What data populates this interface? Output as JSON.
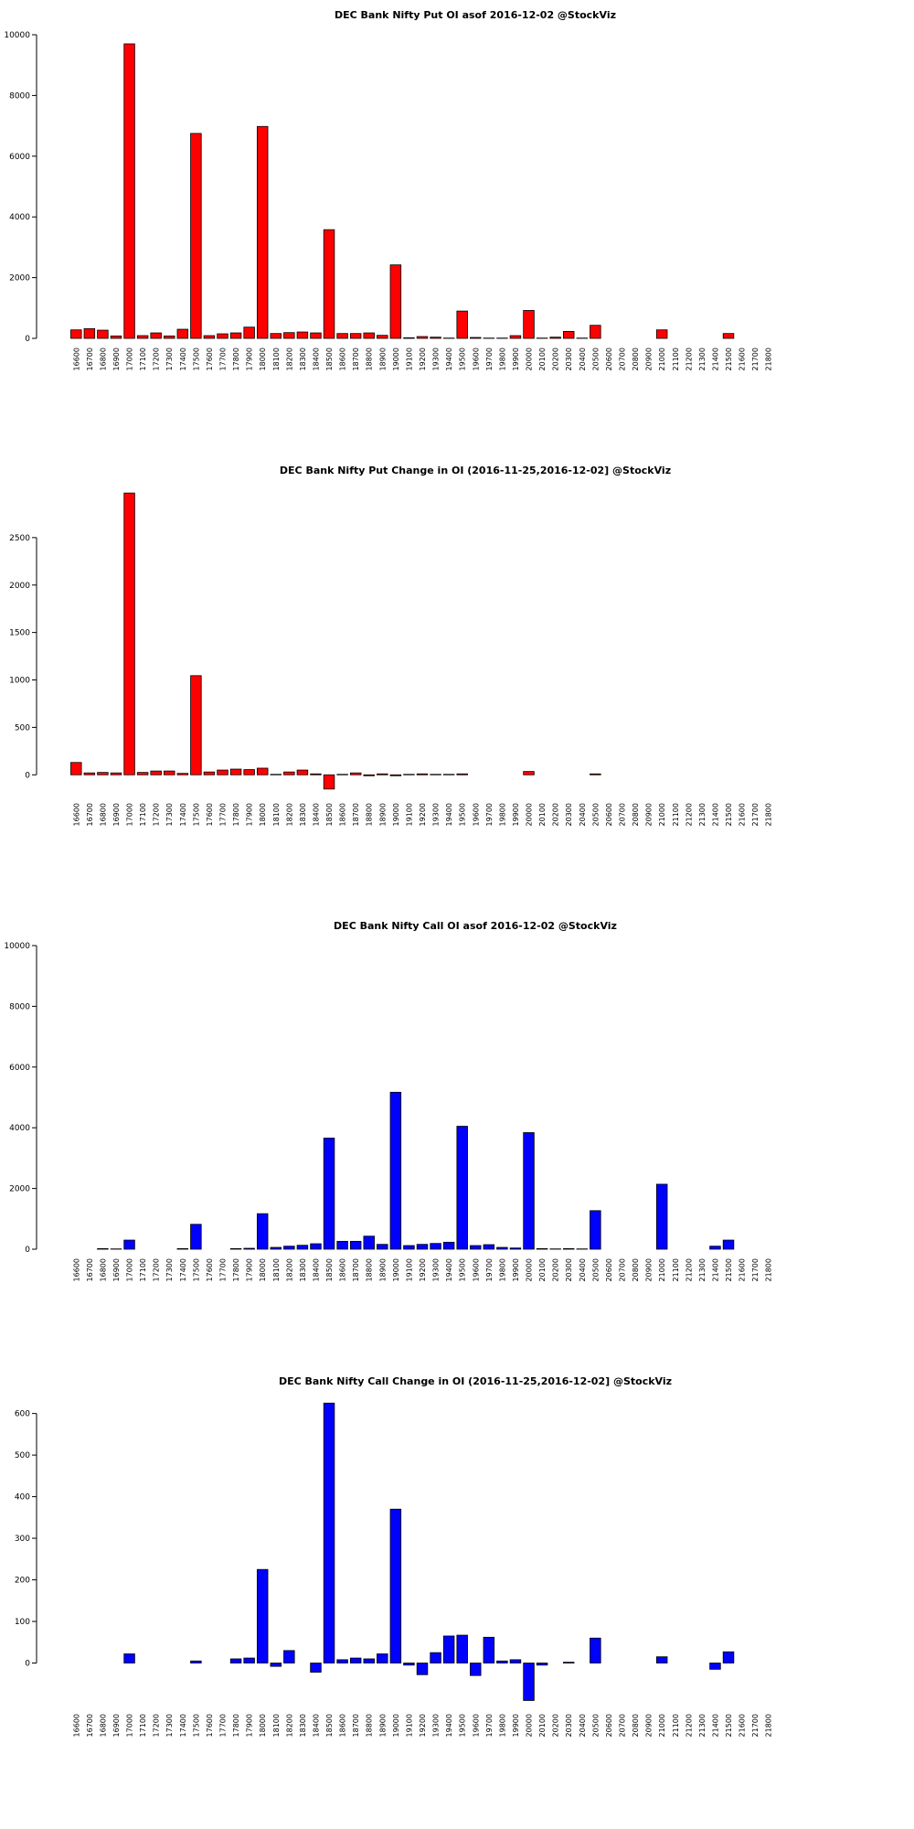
{
  "chart_data": [
    {
      "type": "bar",
      "title": "DEC Bank Nifty Put OI asof 2016-12-02 @StockViz",
      "color": "#ff0000",
      "categories": [
        "16600",
        "16700",
        "16800",
        "16900",
        "17000",
        "17100",
        "17200",
        "17300",
        "17400",
        "17500",
        "17600",
        "17700",
        "17800",
        "17900",
        "18000",
        "18100",
        "18200",
        "18300",
        "18400",
        "18500",
        "18600",
        "18700",
        "18800",
        "18900",
        "19000",
        "19100",
        "19200",
        "19300",
        "19400",
        "19500",
        "19600",
        "19700",
        "19800",
        "19900",
        "20000",
        "20100",
        "20200",
        "20300",
        "20400",
        "20500",
        "20600",
        "20700",
        "20800",
        "20900",
        "21000",
        "21100",
        "21200",
        "21300",
        "21400",
        "21500",
        "21600",
        "21700",
        "21800"
      ],
      "values": [
        280,
        320,
        270,
        80,
        9700,
        90,
        180,
        80,
        300,
        6750,
        90,
        150,
        180,
        370,
        6980,
        160,
        190,
        210,
        180,
        3580,
        160,
        160,
        180,
        100,
        2420,
        20,
        60,
        40,
        10,
        900,
        30,
        10,
        10,
        90,
        920,
        10,
        40,
        230,
        10,
        430,
        0,
        0,
        0,
        0,
        280,
        0,
        0,
        0,
        0,
        160,
        0,
        0,
        0
      ],
      "ylim": [
        0,
        10000
      ],
      "yticks": [
        0,
        2000,
        4000,
        6000,
        8000,
        10000
      ]
    },
    {
      "type": "bar",
      "title": "DEC Bank Nifty Put Change in OI (2016-11-25,2016-12-02] @StockViz",
      "color": "#ff0000",
      "categories": [
        "16600",
        "16700",
        "16800",
        "16900",
        "17000",
        "17100",
        "17200",
        "17300",
        "17400",
        "17500",
        "17600",
        "17700",
        "17800",
        "17900",
        "18000",
        "18100",
        "18200",
        "18300",
        "18400",
        "18500",
        "18600",
        "18700",
        "18800",
        "18900",
        "19000",
        "19100",
        "19200",
        "19300",
        "19400",
        "19500",
        "19600",
        "19700",
        "19800",
        "19900",
        "20000",
        "20100",
        "20200",
        "20300",
        "20400",
        "20500",
        "20600",
        "20700",
        "20800",
        "20900",
        "21000",
        "21100",
        "21200",
        "21300",
        "21400",
        "21500",
        "21600",
        "21700",
        "21800"
      ],
      "values": [
        130,
        20,
        25,
        20,
        2970,
        25,
        40,
        40,
        15,
        1045,
        30,
        50,
        60,
        55,
        70,
        5,
        30,
        50,
        10,
        -150,
        5,
        20,
        -10,
        10,
        -10,
        5,
        10,
        5,
        5,
        10,
        0,
        0,
        0,
        0,
        35,
        0,
        0,
        0,
        0,
        10,
        0,
        0,
        0,
        0,
        0,
        0,
        0,
        0,
        0,
        0,
        0,
        0,
        0
      ],
      "ylim": [
        -200,
        3000
      ],
      "yticks": [
        0,
        500,
        1000,
        1500,
        2000,
        2500
      ]
    },
    {
      "type": "bar",
      "title": "DEC Bank Nifty Call OI asof 2016-12-02 @StockViz",
      "color": "#0000ff",
      "categories": [
        "16600",
        "16700",
        "16800",
        "16900",
        "17000",
        "17100",
        "17200",
        "17300",
        "17400",
        "17500",
        "17600",
        "17700",
        "17800",
        "17900",
        "18000",
        "18100",
        "18200",
        "18300",
        "18400",
        "18500",
        "18600",
        "18700",
        "18800",
        "18900",
        "19000",
        "19100",
        "19200",
        "19300",
        "19400",
        "19500",
        "19600",
        "19700",
        "19800",
        "19900",
        "20000",
        "20100",
        "20200",
        "20300",
        "20400",
        "20500",
        "20600",
        "20700",
        "20800",
        "20900",
        "21000",
        "21100",
        "21200",
        "21300",
        "21400",
        "21500",
        "21600",
        "21700",
        "21800"
      ],
      "values": [
        0,
        0,
        20,
        10,
        300,
        0,
        0,
        0,
        20,
        820,
        0,
        0,
        20,
        30,
        1170,
        60,
        100,
        130,
        180,
        3660,
        260,
        260,
        430,
        160,
        5170,
        120,
        160,
        190,
        230,
        4050,
        120,
        150,
        60,
        40,
        3840,
        20,
        10,
        20,
        10,
        1270,
        0,
        0,
        0,
        0,
        2140,
        0,
        0,
        0,
        100,
        300,
        0,
        0,
        0
      ],
      "ylim": [
        0,
        10000
      ],
      "yticks": [
        0,
        2000,
        4000,
        6000,
        8000,
        10000
      ]
    },
    {
      "type": "bar",
      "title": "DEC Bank Nifty Call Change in OI (2016-11-25,2016-12-02] @StockViz",
      "color": "#0000ff",
      "categories": [
        "16600",
        "16700",
        "16800",
        "16900",
        "17000",
        "17100",
        "17200",
        "17300",
        "17400",
        "17500",
        "17600",
        "17700",
        "17800",
        "17900",
        "18000",
        "18100",
        "18200",
        "18300",
        "18400",
        "18500",
        "18600",
        "18700",
        "18800",
        "18900",
        "19000",
        "19100",
        "19200",
        "19300",
        "19400",
        "19500",
        "19600",
        "19700",
        "19800",
        "19900",
        "20000",
        "20100",
        "20200",
        "20300",
        "20400",
        "20500",
        "20600",
        "20700",
        "20800",
        "20900",
        "21000",
        "21100",
        "21200",
        "21300",
        "21400",
        "21500",
        "21600",
        "21700",
        "21800"
      ],
      "values": [
        0,
        0,
        0,
        0,
        22,
        0,
        0,
        0,
        0,
        5,
        0,
        0,
        10,
        12,
        225,
        -8,
        30,
        0,
        -22,
        625,
        8,
        12,
        10,
        22,
        370,
        -5,
        -28,
        25,
        65,
        67,
        -30,
        62,
        5,
        8,
        -90,
        -5,
        0,
        2,
        0,
        60,
        0,
        0,
        0,
        0,
        15,
        0,
        0,
        0,
        -15,
        27,
        0,
        0,
        0
      ],
      "ylim": [
        -100,
        630
      ],
      "yticks": [
        0,
        100,
        200,
        300,
        400,
        500,
        600
      ]
    }
  ]
}
